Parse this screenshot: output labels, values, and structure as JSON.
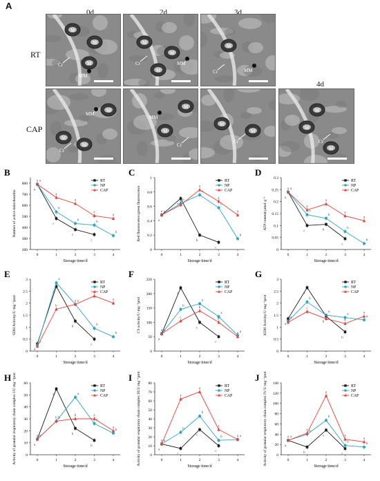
{
  "panel_a": {
    "letter": "A",
    "rows": [
      "RT",
      "CAP"
    ],
    "times": [
      "0d",
      "2d",
      "3d",
      "4d"
    ],
    "micrographs": [
      {
        "row": "RT",
        "time": "0d",
        "labels": [
          "M",
          "M",
          "M",
          "Cr",
          "MM"
        ]
      },
      {
        "row": "RT",
        "time": "2d",
        "labels": [
          "M",
          "M",
          "M",
          "MM",
          "Cr"
        ]
      },
      {
        "row": "RT",
        "time": "3d",
        "labels": [
          "M",
          "Cr",
          "MM"
        ]
      },
      {
        "row": "CAP",
        "time": "0d",
        "labels": [
          "M",
          "M",
          "M",
          "MM",
          "Cr"
        ]
      },
      {
        "row": "CAP",
        "time": "2d",
        "labels": [
          "M",
          "M",
          "MM",
          "Cr"
        ]
      },
      {
        "row": "CAP",
        "time": "3d",
        "labels": [
          "M",
          "M",
          "Cr"
        ]
      },
      {
        "row": "CAP",
        "time": "4d",
        "labels": [
          "M",
          "M",
          "M",
          "Cr"
        ]
      }
    ],
    "colors": {
      "tissue": "#8a8a8a",
      "dark": "#3a3a3a",
      "light": "#c9c9c9",
      "wall": "#e8e8e8"
    }
  },
  "chart_data": [
    {
      "id": "B",
      "type": "line",
      "ylabel": "Number of active mitochondria",
      "xlabel": "Storage time/d",
      "x": [
        0,
        1,
        2,
        3,
        4
      ],
      "ylim": [
        200,
        850
      ],
      "yticks": [
        200,
        300,
        400,
        500,
        600,
        700,
        800
      ],
      "legend": "top-right",
      "series": [
        {
          "name": "RT",
          "values": [
            790,
            480,
            380,
            335,
            null
          ],
          "letters": [
            "a",
            "c",
            "c",
            "c",
            ""
          ]
        },
        {
          "name": "NP",
          "values": [
            790,
            540,
            435,
            420,
            325
          ],
          "letters": [
            "a",
            "b",
            "b",
            "b",
            "b"
          ]
        },
        {
          "name": "CAP",
          "values": [
            790,
            670,
            615,
            505,
            480
          ],
          "letters": [
            "a",
            "a",
            "a",
            "a",
            "a"
          ]
        }
      ]
    },
    {
      "id": "C",
      "type": "line",
      "ylabel": "Red fluorescence/green fluorescence",
      "xlabel": "Storage time/d",
      "x": [
        0,
        1,
        2,
        3,
        4
      ],
      "ylim": [
        0,
        1.0
      ],
      "yticks": [
        0,
        0.2,
        0.4,
        0.6,
        0.8,
        1.0
      ],
      "legend": "top-right",
      "series": [
        {
          "name": "RT",
          "values": [
            0.48,
            0.71,
            0.2,
            0.1,
            null
          ],
          "letters": [
            "a",
            "a",
            "b",
            "c",
            ""
          ]
        },
        {
          "name": "NP",
          "values": [
            0.48,
            0.64,
            0.76,
            0.58,
            0.15
          ],
          "letters": [
            "a",
            "b",
            "a",
            "b",
            "b"
          ]
        },
        {
          "name": "CAP",
          "values": [
            0.48,
            0.62,
            0.83,
            0.67,
            0.48
          ],
          "letters": [
            "a",
            "b",
            "a",
            "a",
            "a"
          ]
        }
      ]
    },
    {
      "id": "D",
      "type": "line",
      "ylabel": "ATP content/μmol·g⁻¹",
      "xlabel": "Storage time/d",
      "x": [
        0,
        1,
        2,
        3,
        4
      ],
      "ylim": [
        0,
        0.3
      ],
      "yticks": [
        0,
        0.05,
        0.1,
        0.15,
        0.2,
        0.25,
        0.3
      ],
      "legend": "top-right",
      "series": [
        {
          "name": "RT",
          "values": [
            0.24,
            0.1,
            0.105,
            0.045,
            null
          ],
          "letters": [
            "a",
            "c",
            "b",
            "c",
            ""
          ]
        },
        {
          "name": "NP",
          "values": [
            0.24,
            0.145,
            0.13,
            0.075,
            0.025
          ],
          "letters": [
            "a",
            "b",
            "b",
            "b",
            "b"
          ]
        },
        {
          "name": "CAP",
          "values": [
            0.24,
            0.165,
            0.19,
            0.14,
            0.12
          ],
          "letters": [
            "a",
            "a",
            "a",
            "a",
            "a"
          ]
        }
      ]
    },
    {
      "id": "E",
      "type": "line",
      "ylabel": "SDH Activity/U·mg⁻¹prot",
      "xlabel": "Storage time/d",
      "x": [
        0,
        1,
        2,
        3,
        4
      ],
      "ylim": [
        0,
        3
      ],
      "yticks": [
        0,
        0.5,
        1,
        1.5,
        2,
        2.5,
        3
      ],
      "legend": "top-right",
      "series": [
        {
          "name": "RT",
          "values": [
            0.3,
            2.7,
            1.25,
            0.5,
            null
          ],
          "letters": [
            "a",
            "a",
            "b",
            "c",
            ""
          ]
        },
        {
          "name": "NP",
          "values": [
            0.25,
            2.85,
            1.95,
            0.95,
            0.6
          ],
          "letters": [
            "a",
            "a",
            "a",
            "b",
            "b"
          ]
        },
        {
          "name": "CAP",
          "values": [
            0.2,
            1.75,
            1.95,
            2.3,
            2.0
          ],
          "letters": [
            "a",
            "b",
            "a",
            "a",
            "a"
          ]
        }
      ]
    },
    {
      "id": "F",
      "type": "line",
      "ylabel": "CS activity/U·mg⁻¹prot",
      "xlabel": "Storage time/d",
      "x": [
        0,
        1,
        2,
        3,
        4
      ],
      "ylim": [
        0,
        250
      ],
      "yticks": [
        0,
        50,
        100,
        150,
        200,
        250
      ],
      "legend": "top-right",
      "series": [
        {
          "name": "RT",
          "values": [
            60,
            220,
            100,
            50,
            null
          ],
          "letters": [
            "a",
            "a",
            "c",
            "c",
            ""
          ]
        },
        {
          "name": "NP",
          "values": [
            60,
            145,
            165,
            120,
            55
          ],
          "letters": [
            "a",
            "b",
            "a",
            "a",
            "a"
          ]
        },
        {
          "name": "CAP",
          "values": [
            60,
            105,
            140,
            100,
            50
          ],
          "letters": [
            "a",
            "c",
            "b",
            "b",
            "a"
          ]
        }
      ]
    },
    {
      "id": "G",
      "type": "line",
      "ylabel": "KDH Activity/U·mg⁻¹prot",
      "xlabel": "Storage time/d",
      "x": [
        0,
        1,
        2,
        3,
        4
      ],
      "ylim": [
        0,
        3
      ],
      "yticks": [
        0,
        0.5,
        1,
        1.5,
        2,
        2.5,
        3
      ],
      "legend": "top-right",
      "series": [
        {
          "name": "RT",
          "values": [
            1.35,
            2.65,
            1.45,
            0.8,
            null
          ],
          "letters": [
            "a",
            "a",
            "b",
            "b",
            ""
          ]
        },
        {
          "name": "NP",
          "values": [
            1.25,
            2.05,
            1.5,
            1.4,
            1.3
          ],
          "letters": [
            "a",
            "b",
            "a",
            "a",
            "a"
          ]
        },
        {
          "name": "CAP",
          "values": [
            1.2,
            1.65,
            1.35,
            1.15,
            1.45
          ],
          "letters": [
            "a",
            "c",
            "a",
            "a",
            "a"
          ]
        }
      ]
    },
    {
      "id": "H",
      "type": "line",
      "ylabel": "Activity of granular respiratory chain complex I/U·mg⁻¹prot",
      "xlabel": "Storage time/d",
      "x": [
        0,
        1,
        2,
        3,
        4
      ],
      "ylim": [
        0,
        60
      ],
      "yticks": [
        0,
        10,
        20,
        30,
        40,
        50,
        60
      ],
      "legend": "top-right",
      "series": [
        {
          "name": "RT",
          "values": [
            13,
            55,
            22,
            12,
            null
          ],
          "letters": [
            "a",
            "a",
            "b",
            "b",
            ""
          ]
        },
        {
          "name": "NP",
          "values": [
            13,
            28,
            48,
            26,
            18
          ],
          "letters": [
            "a",
            "b",
            "a",
            "b",
            "b"
          ]
        },
        {
          "name": "CAP",
          "values": [
            13,
            28,
            30,
            30,
            20
          ],
          "letters": [
            "a",
            "b",
            "b",
            "a",
            "a"
          ]
        }
      ]
    },
    {
      "id": "I",
      "type": "line",
      "ylabel": "Activity of granular respiratory chain complex III/U·mg⁻¹prot",
      "xlabel": "Storage time/d",
      "x": [
        0,
        1,
        2,
        3,
        4
      ],
      "ylim": [
        0,
        80
      ],
      "yticks": [
        0,
        10,
        20,
        30,
        40,
        50,
        60,
        70,
        80
      ],
      "legend": "top-right",
      "series": [
        {
          "name": "RT",
          "values": [
            12,
            7,
            28,
            10,
            null
          ],
          "letters": [
            "a",
            "c",
            "c",
            "c",
            ""
          ]
        },
        {
          "name": "NP",
          "values": [
            12,
            25,
            43,
            16,
            17
          ],
          "letters": [
            "a",
            "b",
            "b",
            "b",
            "a"
          ]
        },
        {
          "name": "CAP",
          "values": [
            12,
            62,
            70,
            28,
            17
          ],
          "letters": [
            "a",
            "a",
            "a",
            "a",
            "a"
          ]
        }
      ]
    },
    {
      "id": "J",
      "type": "line",
      "ylabel": "Activity of granular respiratory chain complex IV/U·mg⁻¹prot",
      "xlabel": "Storage time/d",
      "x": [
        0,
        1,
        2,
        3,
        4
      ],
      "ylim": [
        0,
        140
      ],
      "yticks": [
        0,
        20,
        40,
        60,
        80,
        100,
        120,
        140
      ],
      "legend": "top-right",
      "series": [
        {
          "name": "RT",
          "values": [
            28,
            15,
            48,
            12,
            null
          ],
          "letters": [
            "a",
            "b",
            "c",
            "c",
            ""
          ]
        },
        {
          "name": "NP",
          "values": [
            28,
            40,
            67,
            18,
            15
          ],
          "letters": [
            "a",
            "a",
            "b",
            "b",
            "b"
          ]
        },
        {
          "name": "CAP",
          "values": [
            28,
            42,
            115,
            30,
            25
          ],
          "letters": [
            "a",
            "a",
            "a",
            "a",
            "a"
          ]
        }
      ]
    }
  ],
  "colors": {
    "RT": "#1a1a1a",
    "NP": "#2aa6c4",
    "CAP": "#e8403a"
  }
}
